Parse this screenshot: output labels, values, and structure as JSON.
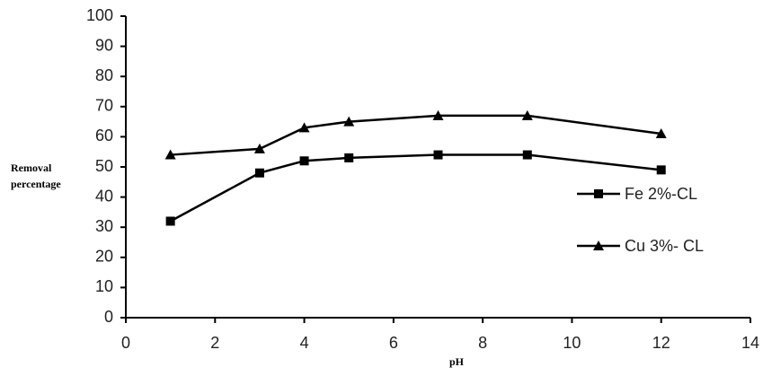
{
  "chart_data": {
    "type": "line",
    "x_label": "pH",
    "y_label": "Removal percentage",
    "x": [
      1,
      3,
      4,
      5,
      7,
      9,
      12
    ],
    "series": [
      {
        "name": "Fe 2%-CL",
        "color": "#000000",
        "marker": "square",
        "values": [
          32,
          48,
          52,
          53,
          54,
          54,
          49
        ]
      },
      {
        "name": "Cu 3%- CL",
        "color": "#000000",
        "marker": "triangle",
        "values": [
          54,
          56,
          63,
          65,
          67,
          67,
          61
        ]
      }
    ],
    "xlim": [
      0,
      14
    ],
    "xticks": [
      0,
      2,
      4,
      6,
      8,
      10,
      12,
      14
    ],
    "ylim": [
      0,
      100
    ],
    "yticks": [
      0,
      10,
      20,
      30,
      40,
      50,
      60,
      70,
      80,
      90,
      100
    ],
    "grid": false,
    "legend": "right"
  }
}
